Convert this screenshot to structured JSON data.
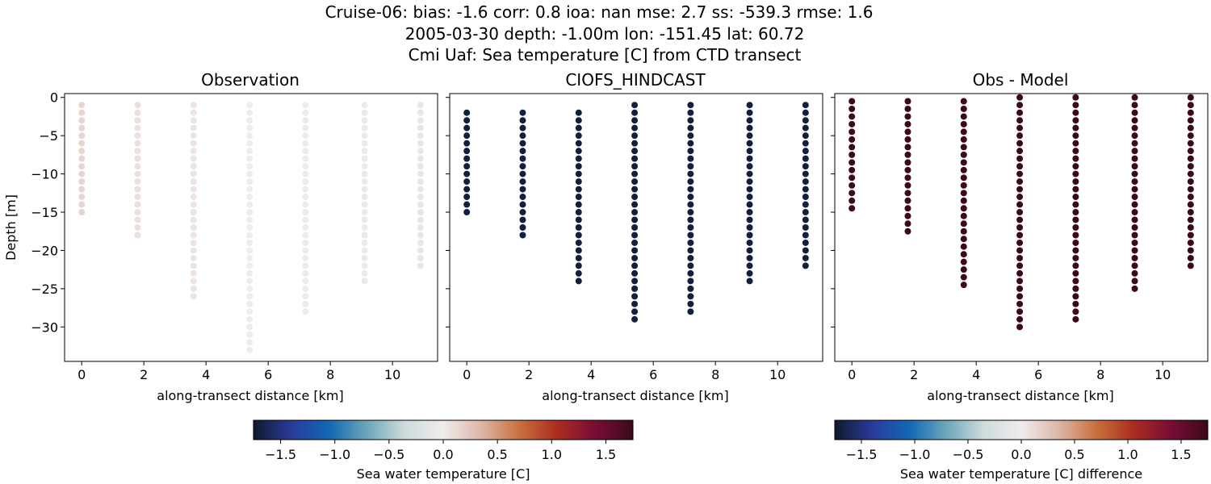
{
  "figure": {
    "title_lines": [
      "Cruise-06: bias: -1.6  corr: 0.8  ioa: nan  mse: 2.7  ss: -539.3  rmse: 1.6",
      "2005-03-30 depth: -1.00m lon: -151.45 lat: 60.72",
      "Cmi Uaf: Sea temperature [C] from CTD transect"
    ]
  },
  "chart_data": [
    {
      "type": "scatter",
      "title": "Observation",
      "xlabel": "along-transect distance [km]",
      "ylabel": "Depth [m]",
      "xlim": [
        -0.55,
        11.45
      ],
      "ylim": [
        -34.5,
        0.5
      ],
      "xticks": [
        0,
        2,
        4,
        6,
        8,
        10
      ],
      "yticks": [
        0,
        -5,
        -10,
        -15,
        -20,
        -25,
        -30
      ],
      "colormap": "balance",
      "clim": [
        -1.75,
        1.75
      ],
      "profiles": [
        {
          "x": 0.0,
          "top": -1,
          "bottom": -15,
          "value": 0.15
        },
        {
          "x": 1.8,
          "top": -1,
          "bottom": -18,
          "value": 0.08
        },
        {
          "x": 3.6,
          "top": -1,
          "bottom": -26,
          "value": 0.06
        },
        {
          "x": 5.4,
          "top": -1,
          "bottom": -33,
          "value": 0.0
        },
        {
          "x": 7.2,
          "top": -1,
          "bottom": -28,
          "value": -0.03
        },
        {
          "x": 9.1,
          "top": -1,
          "bottom": -24,
          "value": -0.05
        },
        {
          "x": 10.9,
          "top": -1,
          "bottom": -22,
          "value": -0.1
        }
      ]
    },
    {
      "type": "scatter",
      "title": "CIOFS_HINDCAST",
      "xlabel": "along-transect distance [km]",
      "xlim": [
        -0.55,
        11.45
      ],
      "ylim": [
        -34.5,
        0.5
      ],
      "xticks": [
        0,
        2,
        4,
        6,
        8,
        10
      ],
      "colormap": "balance",
      "clim": [
        -1.75,
        1.75
      ],
      "profiles": [
        {
          "x": 0.0,
          "top": -2,
          "bottom": -15,
          "value": -1.7
        },
        {
          "x": 1.8,
          "top": -2,
          "bottom": -18,
          "value": -1.7
        },
        {
          "x": 3.6,
          "top": -2,
          "bottom": -24,
          "value": -1.7
        },
        {
          "x": 5.4,
          "top": -1,
          "bottom": -29,
          "value": -1.7
        },
        {
          "x": 7.2,
          "top": -1,
          "bottom": -28,
          "value": -1.7
        },
        {
          "x": 9.1,
          "top": -1,
          "bottom": -24,
          "value": -1.7
        },
        {
          "x": 10.9,
          "top": -1,
          "bottom": -22,
          "value": -1.7
        }
      ]
    },
    {
      "type": "scatter",
      "title": "Obs - Model",
      "xlabel": "along-transect distance [km]",
      "xlim": [
        -0.55,
        11.45
      ],
      "ylim": [
        -34.5,
        0.5
      ],
      "xticks": [
        0,
        2,
        4,
        6,
        8,
        10
      ],
      "colormap": "balance",
      "clim": [
        -1.75,
        1.75
      ],
      "profiles": [
        {
          "x": 0.0,
          "top": -0.5,
          "bottom": -15,
          "value": 1.75
        },
        {
          "x": 1.8,
          "top": -0.5,
          "bottom": -18,
          "value": 1.75
        },
        {
          "x": 3.6,
          "top": -0.5,
          "bottom": -25,
          "value": 1.75
        },
        {
          "x": 5.4,
          "top": 0,
          "bottom": -30,
          "value": 1.75
        },
        {
          "x": 7.2,
          "top": 0,
          "bottom": -29,
          "value": 1.75
        },
        {
          "x": 9.1,
          "top": 0,
          "bottom": -25,
          "value": 1.75
        },
        {
          "x": 10.9,
          "top": 0,
          "bottom": -22.5,
          "value": 1.75
        }
      ]
    }
  ],
  "colorbars": [
    {
      "label": "Sea water temperature [C]",
      "clim": [
        -1.75,
        1.75
      ],
      "ticks": [
        -1.5,
        -1.0,
        -0.5,
        0.0,
        0.5,
        1.0,
        1.5
      ],
      "tick_labels": [
        "−1.5",
        "−1.0",
        "−0.5",
        "0.0",
        "0.5",
        "1.0",
        "1.5"
      ]
    },
    {
      "label": "Sea water temperature [C] difference",
      "clim": [
        -1.75,
        1.75
      ],
      "ticks": [
        -1.5,
        -1.0,
        -0.5,
        0.0,
        0.5,
        1.0,
        1.5
      ],
      "tick_labels": [
        "−1.5",
        "−1.0",
        "−0.5",
        "0.0",
        "0.5",
        "1.0",
        "1.5"
      ]
    }
  ],
  "colormap_stops": [
    "#0f1a2e",
    "#2a3a99",
    "#1268b4",
    "#6ea6b9",
    "#cfdcdd",
    "#f0ecec",
    "#dcb7a8",
    "#c9703f",
    "#aa2d20",
    "#780c36",
    "#3b0a1a"
  ]
}
